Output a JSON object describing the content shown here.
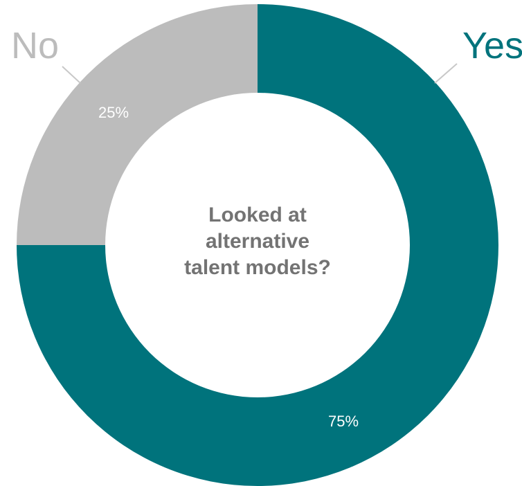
{
  "chart_data": {
    "type": "pie",
    "center_text": [
      "Looked at",
      "alternative",
      "talent models?"
    ],
    "slices": [
      {
        "label": "Yes",
        "value": 75,
        "value_label": "75%",
        "color": "#00737C"
      },
      {
        "label": "No",
        "value": 25,
        "value_label": "25%",
        "color": "#BCBCBC"
      }
    ],
    "legend": "none",
    "grid": false
  }
}
